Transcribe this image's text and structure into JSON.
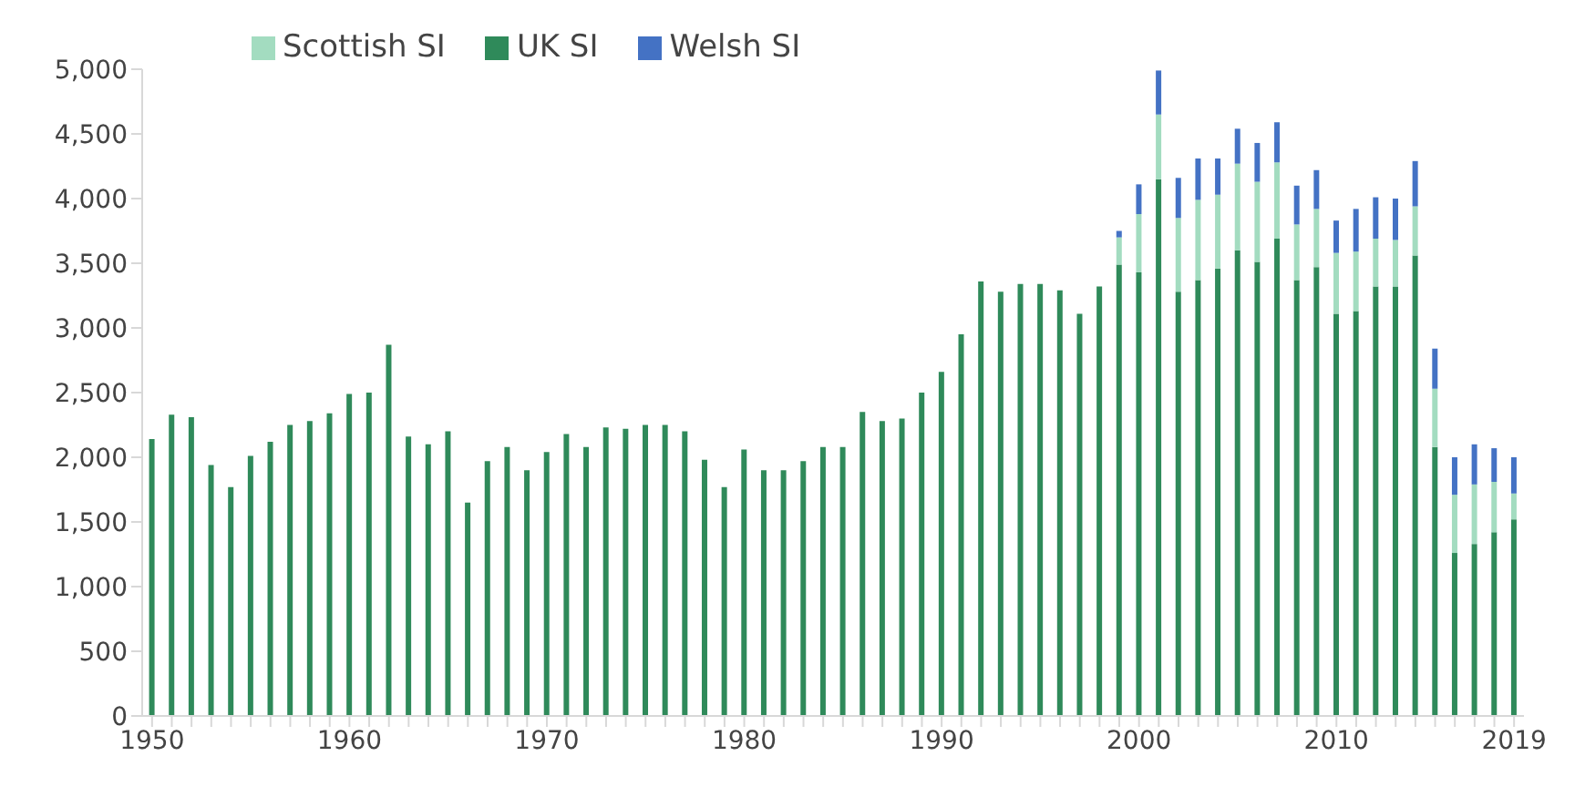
{
  "chart_data": {
    "type": "bar",
    "stacked": true,
    "legend": "top left",
    "grid": false,
    "categories": [
      "1950",
      null,
      null,
      null,
      null,
      null,
      null,
      null,
      null,
      null,
      "1960",
      null,
      null,
      null,
      null,
      null,
      null,
      null,
      null,
      null,
      "1970",
      null,
      null,
      null,
      null,
      null,
      null,
      null,
      null,
      null,
      "1980",
      null,
      null,
      null,
      null,
      null,
      null,
      null,
      null,
      null,
      "1990",
      null,
      null,
      null,
      null,
      null,
      null,
      null,
      null,
      null,
      "2000",
      null,
      null,
      null,
      null,
      null,
      null,
      null,
      null,
      null,
      "2010",
      null,
      null,
      null,
      null,
      null,
      null,
      null,
      null,
      "2019"
    ],
    "ylim": [
      0,
      5000
    ],
    "yticks": [
      {
        "value": 0,
        "label": "0"
      },
      {
        "value": 500,
        "label": "500"
      },
      {
        "value": 1000,
        "label": "1,000"
      },
      {
        "value": 1500,
        "label": "1,500"
      },
      {
        "value": 2000,
        "label": "2,000"
      },
      {
        "value": 2500,
        "label": "2,500"
      },
      {
        "value": 3000,
        "label": "3,000"
      },
      {
        "value": 3500,
        "label": "3,500"
      },
      {
        "value": 4000,
        "label": "4,000"
      },
      {
        "value": 4500,
        "label": "4,500"
      },
      {
        "value": 5000,
        "label": "5,000"
      }
    ],
    "series": [
      {
        "name": "UK SI",
        "color": "#2f8a5a",
        "values": [
          2140,
          2330,
          2310,
          1940,
          1770,
          2010,
          2120,
          2250,
          2280,
          2340,
          2490,
          2500,
          2870,
          2160,
          2100,
          2200,
          1650,
          1970,
          2080,
          1900,
          2040,
          2180,
          2080,
          2230,
          2220,
          2250,
          2250,
          2200,
          1980,
          1770,
          2060,
          1900,
          1900,
          1970,
          2080,
          2080,
          2350,
          2280,
          2300,
          2500,
          2660,
          2950,
          3360,
          3280,
          3340,
          3340,
          3290,
          3110,
          3320,
          3490,
          3430,
          4150,
          3280,
          3370,
          3460,
          3600,
          3510,
          3690,
          3370,
          3470,
          3110,
          3130,
          3320,
          3320,
          3560,
          2080,
          1260,
          1330,
          1420,
          1520
        ]
      },
      {
        "name": "Scottish SI",
        "color": "#a3dcc0",
        "values": [
          null,
          null,
          null,
          null,
          null,
          null,
          null,
          null,
          null,
          null,
          null,
          null,
          null,
          null,
          null,
          null,
          null,
          null,
          null,
          null,
          null,
          null,
          null,
          null,
          null,
          null,
          null,
          null,
          null,
          null,
          null,
          null,
          null,
          null,
          null,
          null,
          null,
          null,
          null,
          null,
          null,
          null,
          null,
          null,
          null,
          null,
          null,
          null,
          null,
          210,
          450,
          500,
          570,
          620,
          570,
          670,
          620,
          590,
          430,
          450,
          470,
          460,
          370,
          360,
          380,
          450,
          450,
          460,
          390,
          200
        ]
      },
      {
        "name": "Welsh SI",
        "color": "#4472c4",
        "values": [
          null,
          null,
          null,
          null,
          null,
          null,
          null,
          null,
          null,
          null,
          null,
          null,
          null,
          null,
          null,
          null,
          null,
          null,
          null,
          null,
          null,
          null,
          null,
          null,
          null,
          null,
          null,
          null,
          null,
          null,
          null,
          null,
          null,
          null,
          null,
          null,
          null,
          null,
          null,
          null,
          null,
          null,
          null,
          null,
          null,
          null,
          null,
          null,
          null,
          50,
          230,
          340,
          310,
          320,
          280,
          270,
          300,
          310,
          300,
          300,
          250,
          330,
          320,
          320,
          350,
          310,
          290,
          310,
          260,
          280
        ]
      }
    ]
  }
}
